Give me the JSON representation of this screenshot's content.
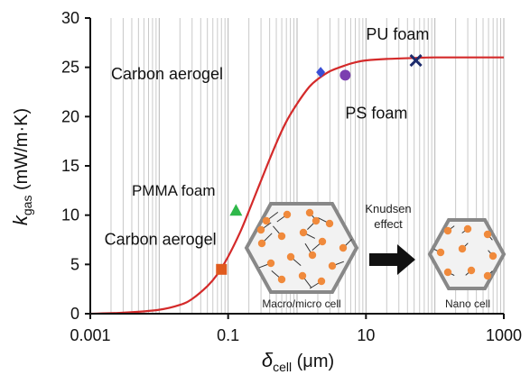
{
  "chart_data": {
    "type": "line",
    "x_scale": "log",
    "xlim": [
      0.001,
      1000
    ],
    "ylim": [
      0,
      30
    ],
    "x_ticks": [
      "0.001",
      "0.1",
      "10",
      "1000"
    ],
    "y_ticks": [
      "0",
      "5",
      "10",
      "15",
      "20",
      "25",
      "30"
    ],
    "xlabel_main": "δ",
    "xlabel_sub": "cell",
    "xlabel_unit": " (μm)",
    "ylabel_main": "k",
    "ylabel_sub": "gas",
    "ylabel_unit": " (mW/m·K)",
    "grid": "vertical minor lines",
    "series": [
      {
        "color": "#d42a2a",
        "x": [
          0.001,
          0.003,
          0.01,
          0.02,
          0.03,
          0.05,
          0.07,
          0.1,
          0.15,
          0.2,
          0.3,
          0.5,
          0.7,
          1,
          1.5,
          2,
          3,
          5,
          7,
          10,
          20,
          50,
          100,
          300,
          1000
        ],
        "y": [
          0.0,
          0.1,
          0.4,
          0.9,
          1.5,
          2.8,
          4.0,
          5.8,
          8.3,
          10.4,
          13.5,
          17.3,
          19.5,
          21.3,
          23.0,
          23.8,
          24.6,
          25.2,
          25.5,
          25.7,
          25.85,
          25.95,
          26.0,
          26.0,
          26.0
        ]
      }
    ],
    "points": [
      {
        "label": "Carbon aerogel",
        "x": 0.08,
        "y": 4.5,
        "marker": "square",
        "color": "#e05a1e"
      },
      {
        "label": "PMMA foam",
        "x": 0.13,
        "y": 10.5,
        "marker": "triangle",
        "color": "#2fb84a"
      },
      {
        "label": "Carbon aerogel",
        "x": 2.2,
        "y": 24.5,
        "marker": "diamond",
        "color": "#3a4fd6"
      },
      {
        "label": "PS foam",
        "x": 5,
        "y": 24.2,
        "marker": "circle",
        "color": "#7b3fb0"
      },
      {
        "label": "PU foam",
        "x": 53,
        "y": 25.7,
        "marker": "cross",
        "color": "#1c2a6b"
      }
    ],
    "annotations": [
      {
        "text": "Carbon aerogel",
        "x": 0.002,
        "y": 23.8
      },
      {
        "text": "PS foam",
        "x": 5,
        "y": 19.8
      },
      {
        "text": "PU foam",
        "x": 10,
        "y": 27.8
      },
      {
        "text": "PMMA foam",
        "x": 0.004,
        "y": 12.0
      },
      {
        "text": "Carbon aerogel",
        "x": 0.0016,
        "y": 7.0
      }
    ]
  },
  "inset": {
    "left_caption": "Macro/micro cell",
    "arrow_label_1": "Knudsen",
    "arrow_label_2": "effect",
    "right_caption": "Nano cell"
  }
}
